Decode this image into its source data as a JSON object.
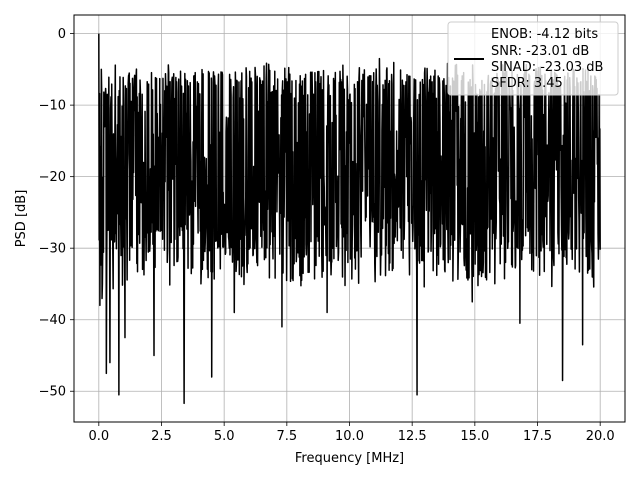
{
  "chart_data": {
    "type": "line",
    "title": "",
    "xlabel": "Frequency [MHz]",
    "ylabel": "PSD [dB]",
    "xlim": [
      -0.99,
      20.99
    ],
    "ylim": [
      -54.3,
      2.6
    ],
    "xticks": [
      0.0,
      2.5,
      5.0,
      7.5,
      10.0,
      12.5,
      15.0,
      17.5,
      20.0
    ],
    "xtick_labels": [
      "0.0",
      "2.5",
      "5.0",
      "7.5",
      "10.0",
      "12.5",
      "15.0",
      "17.5",
      "20.0"
    ],
    "yticks": [
      0,
      -10,
      -20,
      -30,
      -40,
      -50
    ],
    "ytick_labels": [
      "0",
      "−10",
      "−20",
      "−30",
      "−40",
      "−50"
    ],
    "grid": true,
    "legend_position": "top-right",
    "line_color": "#000000",
    "series": [
      {
        "name": "",
        "legend_lines": [
          "ENOB: -4.12 bits",
          "SNR: -23.01 dB",
          "SINAD: -23.03 dB",
          "SFDR: 3.45"
        ],
        "x_start": 0.0,
        "x_end": 20.0,
        "noise_band_top": [
          -9,
          -6
        ],
        "noise_band_bottom": [
          -28,
          -36
        ],
        "peaks": [
          {
            "x": 0.0,
            "y": 0.0
          },
          {
            "x": 0.1,
            "y": -5.0
          },
          {
            "x": 0.35,
            "y": -8.5
          },
          {
            "x": 5.7,
            "y": -5.5
          },
          {
            "x": 11.2,
            "y": -3.5
          },
          {
            "x": 11.5,
            "y": -4.8
          },
          {
            "x": 19.7,
            "y": -7.3
          }
        ],
        "dips": [
          {
            "x": 0.05,
            "y": -38.0
          },
          {
            "x": 0.3,
            "y": -47.5
          },
          {
            "x": 0.45,
            "y": -46.0
          },
          {
            "x": 0.8,
            "y": -50.5
          },
          {
            "x": 1.05,
            "y": -42.5
          },
          {
            "x": 2.2,
            "y": -45.0
          },
          {
            "x": 3.4,
            "y": -51.7
          },
          {
            "x": 4.5,
            "y": -48.0
          },
          {
            "x": 5.4,
            "y": -39.0
          },
          {
            "x": 7.3,
            "y": -41.0
          },
          {
            "x": 9.1,
            "y": -39.0
          },
          {
            "x": 12.7,
            "y": -50.5
          },
          {
            "x": 14.9,
            "y": -37.5
          },
          {
            "x": 16.8,
            "y": -40.5
          },
          {
            "x": 18.5,
            "y": -48.5
          },
          {
            "x": 19.3,
            "y": -43.5
          }
        ]
      }
    ]
  }
}
